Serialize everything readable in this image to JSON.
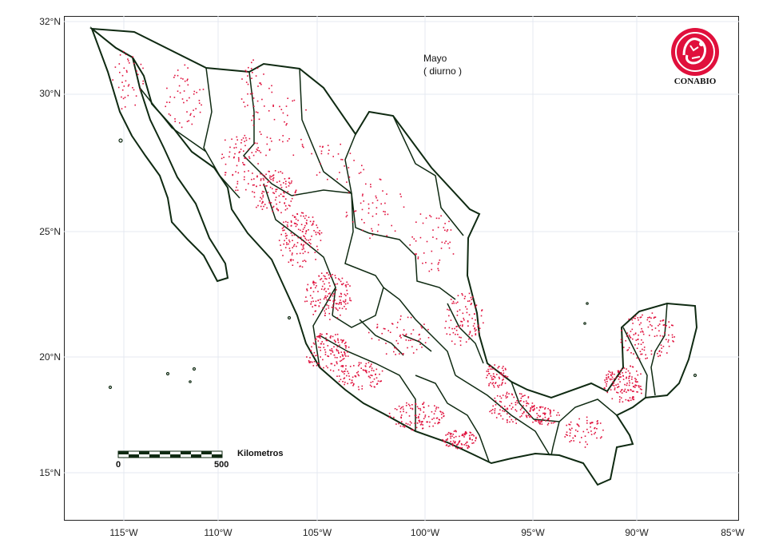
{
  "title": "Mayo",
  "subtitle": "( diurno )",
  "logo_text": "CONABIO",
  "colors": {
    "land": "#ffffff",
    "border": "#0f2a12",
    "hotspot": "#e0103c",
    "grid": "#e4e8f0"
  },
  "axes": {
    "lat_ticks": [
      "32°N",
      "30°N",
      "25°N",
      "20°N",
      "15°N"
    ],
    "lon_ticks": [
      "115°W",
      "110°W",
      "105°W",
      "100°W",
      "95°W",
      "90°W",
      "85°W"
    ]
  },
  "scale_bar": {
    "label": "Kilometros",
    "min_label": "0",
    "max_label": "500"
  }
}
